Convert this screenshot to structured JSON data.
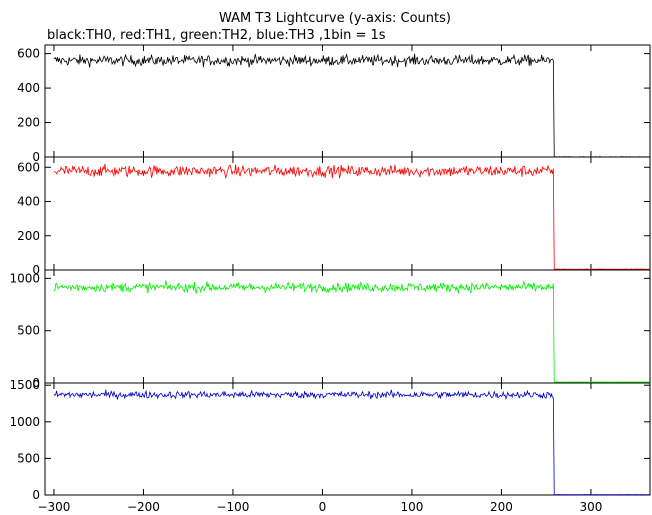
{
  "chart_data": {
    "type": "line",
    "title": "WAM T3 Lightcurve (y-axis: Counts)",
    "subtitle": "black:TH0, red:TH1, green:TH2, blue:TH3 ,1bin = 1s",
    "xlabel": "",
    "ylabel": "",
    "xlim": [
      -310,
      366
    ],
    "x_ticks": [
      -300,
      -200,
      -100,
      0,
      100,
      200,
      300
    ],
    "grid": false,
    "panels": [
      {
        "name": "TH0",
        "color": "#000000",
        "ylim": [
          0,
          650
        ],
        "y_ticks": [
          0,
          200,
          400,
          600
        ],
        "level_before": 560,
        "noise": 22,
        "drop_x": 259,
        "level_after": 0
      },
      {
        "name": "TH1",
        "color": "#ff0000",
        "ylim": [
          0,
          660
        ],
        "y_ticks": [
          0,
          200,
          400,
          600
        ],
        "level_before": 578,
        "noise": 24,
        "drop_x": 259,
        "level_after": 4
      },
      {
        "name": "TH2",
        "color": "#00ee00",
        "ylim": [
          0,
          1080
        ],
        "y_ticks": [
          0,
          500,
          1000
        ],
        "level_before": 915,
        "noise": 32,
        "drop_x": 259,
        "level_after": 8
      },
      {
        "name": "TH3",
        "color": "#0000cc",
        "ylim": [
          0,
          1530
        ],
        "y_ticks": [
          0,
          500,
          1000,
          1500
        ],
        "level_before": 1370,
        "noise": 35,
        "drop_x": 259,
        "level_after": 4
      }
    ]
  }
}
